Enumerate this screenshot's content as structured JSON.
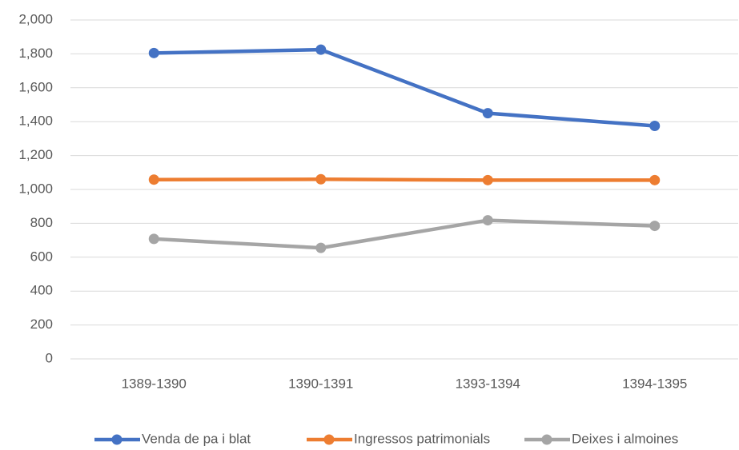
{
  "chart_data": {
    "type": "line",
    "categories": [
      "1389-1390",
      "1390-1391",
      "1393-1394",
      "1394-1395"
    ],
    "series": [
      {
        "name": "Venda de pa i blat",
        "color": "#4472c4",
        "values": [
          1805,
          1825,
          1450,
          1375
        ]
      },
      {
        "name": "Ingressos patrimonials",
        "color": "#ed7d31",
        "values": [
          1058,
          1060,
          1055,
          1055
        ]
      },
      {
        "name": "Deixes i almoines",
        "color": "#a5a5a5",
        "values": [
          708,
          655,
          818,
          785
        ]
      }
    ],
    "ylim": [
      0,
      2000
    ],
    "yticks": [
      0,
      200,
      400,
      600,
      800,
      {
        "value": 1000,
        "label": "1,000"
      },
      {
        "value": 1200,
        "label": "1,200"
      },
      {
        "value": 1400,
        "label": "1,400"
      },
      {
        "value": 1600,
        "label": "1,600"
      },
      {
        "value": 1800,
        "label": "1,800"
      },
      {
        "value": 2000,
        "label": "2,000"
      }
    ],
    "grid": true,
    "legend": "bottom"
  }
}
